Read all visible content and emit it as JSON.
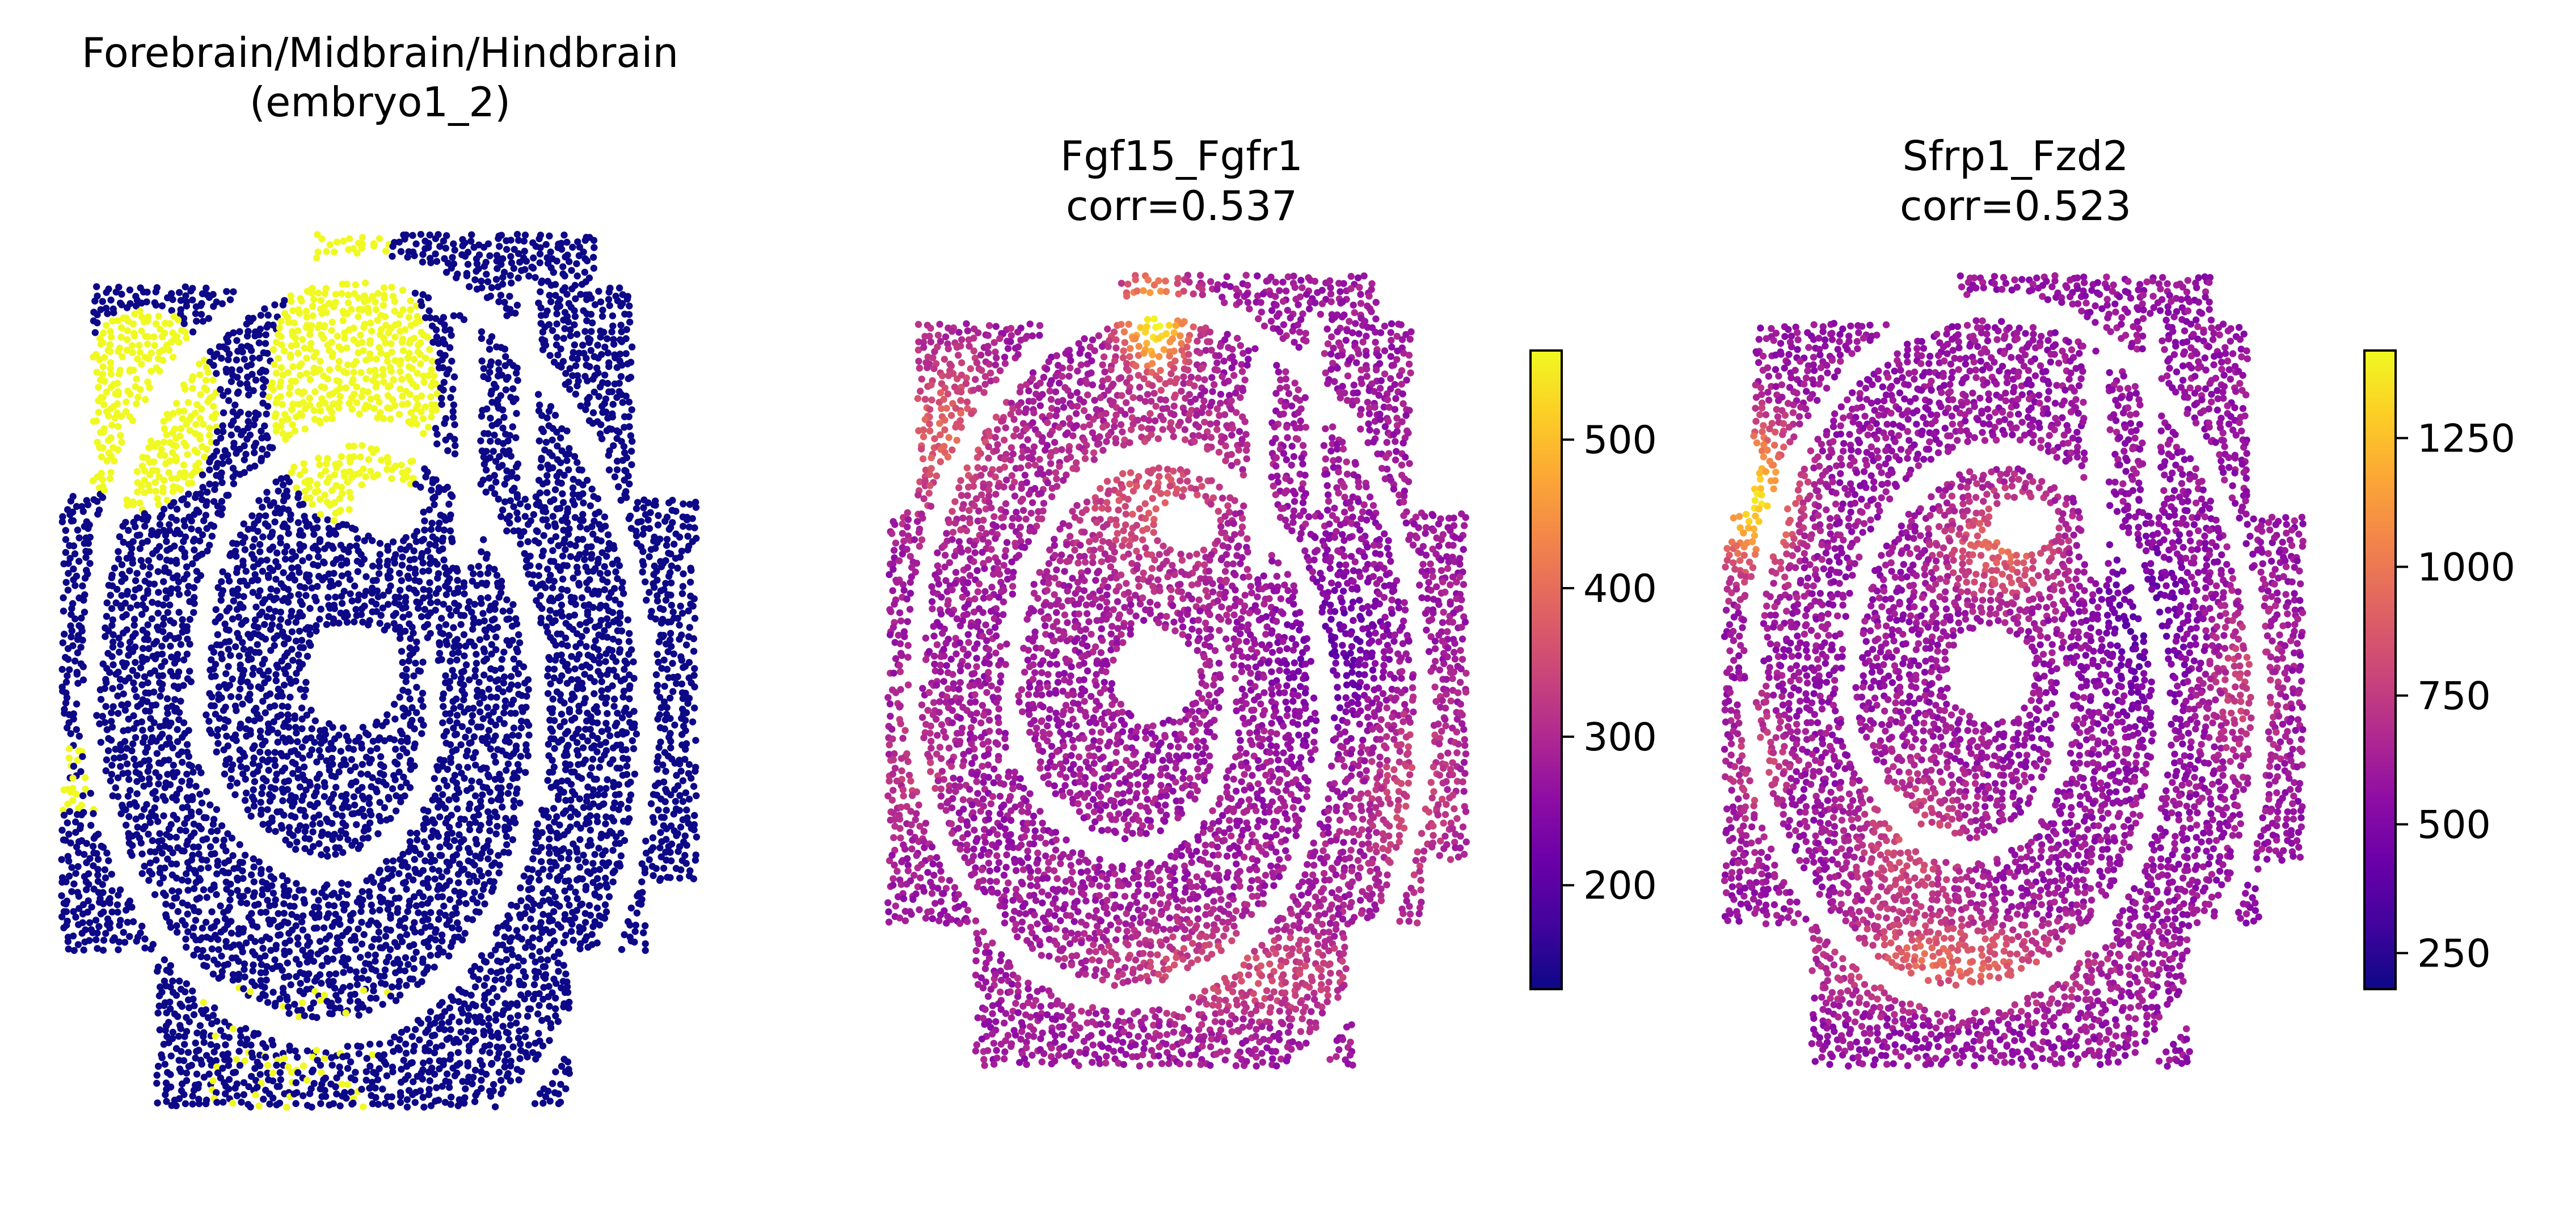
{
  "chart_data": [
    {
      "type": "scatter",
      "title_lines": [
        "Forebrain/Midbrain/Hindbrain",
        "(embryo1_2)"
      ],
      "colormap": "plasma",
      "category_colors": {
        "in_region": "#f0f921",
        "out_of_region": "#0d0887"
      },
      "colorbar": false,
      "axes_visible": false
    },
    {
      "type": "scatter",
      "title_lines": [
        "Fgf15_Fgfr1",
        "corr=0.537"
      ],
      "colormap": "plasma",
      "colorbar": true,
      "color_range": [
        130,
        560
      ],
      "colorbar_ticks": [
        200,
        300,
        400,
        500
      ],
      "colorbar_tick_labels": [
        "200",
        "300",
        "400",
        "500"
      ],
      "axes_visible": false
    },
    {
      "type": "scatter",
      "title_lines": [
        "Sfrp1_Fzd2",
        "corr=0.523"
      ],
      "colormap": "plasma",
      "colorbar": true,
      "color_range": [
        180,
        1420
      ],
      "colorbar_ticks": [
        250,
        500,
        750,
        1000,
        1250
      ],
      "colorbar_tick_labels": [
        "250",
        "500",
        "750",
        "1000",
        "1250"
      ],
      "axes_visible": false
    }
  ]
}
